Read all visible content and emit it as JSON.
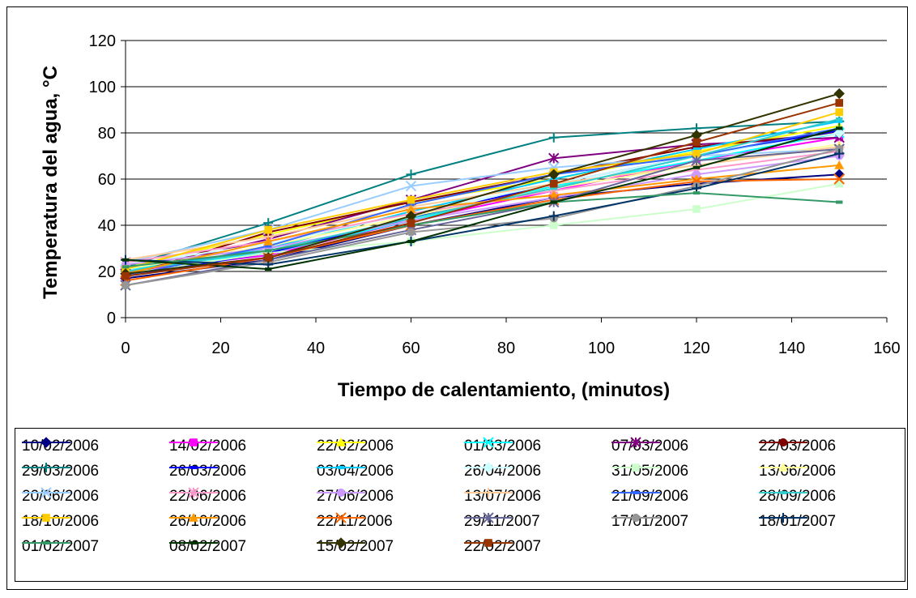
{
  "chart_data": {
    "type": "line",
    "title": "",
    "xlabel": "Tiempo de calentamiento, (minutos)",
    "ylabel": "Temperatura del agua, °C",
    "xlim": [
      0,
      160
    ],
    "ylim": [
      0,
      120
    ],
    "xticks": [
      0,
      20,
      40,
      60,
      80,
      100,
      120,
      140,
      160
    ],
    "yticks": [
      0,
      20,
      40,
      60,
      80,
      100,
      120
    ],
    "grid": "horizontal",
    "legend_position": "bottom",
    "x": [
      0,
      30,
      60,
      90,
      120,
      150
    ],
    "series": [
      {
        "name": "10/02/2006",
        "color": "#000080",
        "marker": "diamond",
        "values": [
          17,
          25,
          40,
          52,
          58,
          62
        ]
      },
      {
        "name": "14/02/2006",
        "color": "#ff00ff",
        "marker": "square",
        "values": [
          20,
          27,
          42,
          55,
          68,
          78
        ]
      },
      {
        "name": "22/02/2006",
        "color": "#ffff00",
        "marker": "triangle",
        "values": [
          22,
          36,
          50,
          60,
          72,
          83
        ]
      },
      {
        "name": "01/03/2006",
        "color": "#00ffff",
        "marker": "x",
        "values": [
          21,
          28,
          42,
          57,
          68,
          80
        ]
      },
      {
        "name": "07/03/2006",
        "color": "#800080",
        "marker": "star",
        "values": [
          19,
          34,
          51,
          69,
          75,
          78
        ]
      },
      {
        "name": "22/03/2006",
        "color": "#800000",
        "marker": "circle",
        "values": [
          18,
          37,
          50,
          62,
          74,
          80
        ]
      },
      {
        "name": "29/03/2006",
        "color": "#008080",
        "marker": "plus",
        "values": [
          22,
          41,
          62,
          78,
          82,
          85
        ]
      },
      {
        "name": "26/03/2006",
        "color": "#0000ff",
        "marker": "dash",
        "values": [
          18,
          28,
          43,
          58,
          70,
          81
        ]
      },
      {
        "name": "03/04/2006",
        "color": "#00ccff",
        "marker": "dash",
        "values": [
          20,
          30,
          46,
          60,
          73,
          85
        ]
      },
      {
        "name": "26/04/2006",
        "color": "#ccffff",
        "marker": "diamond",
        "values": [
          23,
          32,
          45,
          58,
          70,
          80
        ]
      },
      {
        "name": "31/05/2006",
        "color": "#ccffcc",
        "marker": "square",
        "values": [
          19,
          28,
          33,
          40,
          47,
          58
        ]
      },
      {
        "name": "13/06/2006",
        "color": "#ffff99",
        "marker": "triangle",
        "values": [
          21,
          31,
          44,
          56,
          66,
          75
        ]
      },
      {
        "name": "20/06/2006",
        "color": "#99ccff",
        "marker": "x",
        "values": [
          24,
          38,
          57,
          65,
          70,
          73
        ]
      },
      {
        "name": "22/06/2006",
        "color": "#ff99cc",
        "marker": "star",
        "values": [
          24,
          33,
          45,
          55,
          64,
          72
        ]
      },
      {
        "name": "27/06/2006",
        "color": "#cc99ff",
        "marker": "circle",
        "values": [
          23,
          30,
          42,
          52,
          62,
          70
        ]
      },
      {
        "name": "13/07/2006",
        "color": "#ffcc99",
        "marker": "plus",
        "values": [
          25,
          35,
          48,
          58,
          66,
          74
        ]
      },
      {
        "name": "21/09/2006",
        "color": "#3366ff",
        "marker": "dash",
        "values": [
          18,
          31,
          49,
          62,
          70,
          82
        ]
      },
      {
        "name": "28/09/2006",
        "color": "#33cccc",
        "marker": "dash",
        "values": [
          20,
          29,
          43,
          56,
          70,
          86
        ]
      },
      {
        "name": "18/10/2006",
        "color": "#ffcc00",
        "marker": "square",
        "values": [
          21,
          38,
          51,
          63,
          71,
          89
        ]
      },
      {
        "name": "26/10/2006",
        "color": "#ff9900",
        "marker": "triangle",
        "values": [
          19,
          33,
          47,
          53,
          60,
          66
        ]
      },
      {
        "name": "22/11/2006",
        "color": "#ff6600",
        "marker": "x",
        "values": [
          16,
          26,
          40,
          51,
          59,
          60
        ]
      },
      {
        "name": "29/11/2007",
        "color": "#666699",
        "marker": "star",
        "values": [
          14,
          25,
          38,
          50,
          68,
          73
        ]
      },
      {
        "name": "17/01/2007",
        "color": "#969696",
        "marker": "circle",
        "values": [
          14,
          24,
          37,
          43,
          57,
          73
        ]
      },
      {
        "name": "18/01/2007",
        "color": "#003366",
        "marker": "plus",
        "values": [
          25,
          23,
          33,
          44,
          56,
          71
        ]
      },
      {
        "name": "01/02/2007",
        "color": "#339966",
        "marker": "dash",
        "values": [
          22,
          29,
          40,
          50,
          54,
          50
        ]
      },
      {
        "name": "08/02/2007",
        "color": "#003300",
        "marker": "dash",
        "values": [
          25,
          21,
          33,
          50,
          65,
          82
        ]
      },
      {
        "name": "15/02/2007",
        "color": "#333300",
        "marker": "diamond",
        "values": [
          19,
          26,
          44,
          62,
          79,
          97
        ]
      },
      {
        "name": "22/02/2007",
        "color": "#993300",
        "marker": "square",
        "values": [
          18,
          26,
          41,
          58,
          76,
          93
        ]
      }
    ]
  }
}
